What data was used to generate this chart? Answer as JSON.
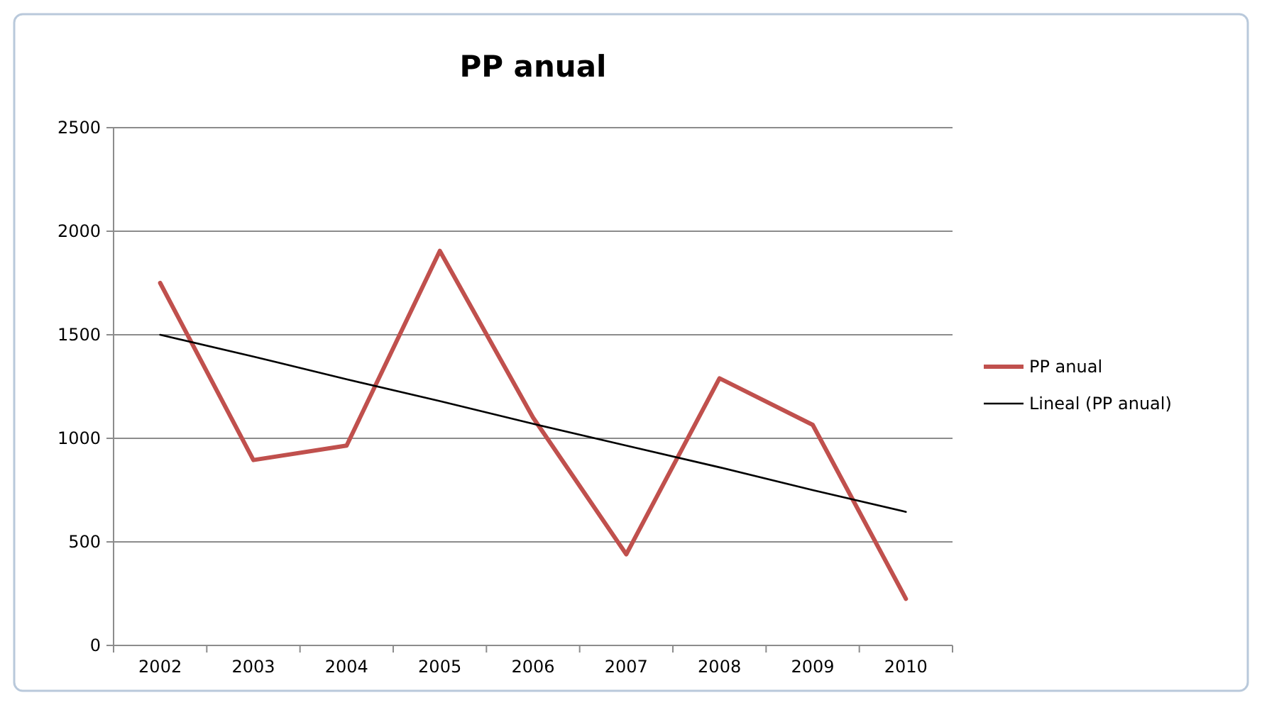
{
  "chart_data": {
    "type": "line",
    "title": "PP anual",
    "categories": [
      "2002",
      "2003",
      "2004",
      "2005",
      "2006",
      "2007",
      "2008",
      "2009",
      "2010"
    ],
    "series": [
      {
        "name": "PP anual",
        "color": "#c0504d",
        "values": [
          1750,
          895,
          965,
          1905,
          1100,
          440,
          1290,
          1065,
          225
        ]
      },
      {
        "name": "Lineal (PP anual)",
        "color": "#000000",
        "type": "line",
        "values": [
          1500,
          1395,
          1285,
          1180,
          1070,
          965,
          860,
          750,
          645
        ]
      }
    ],
    "ylim": [
      0,
      2500
    ],
    "yticks": [
      0,
      500,
      1000,
      1500,
      2000,
      2500
    ],
    "grid": "y",
    "legend": "right",
    "marker": "none"
  }
}
